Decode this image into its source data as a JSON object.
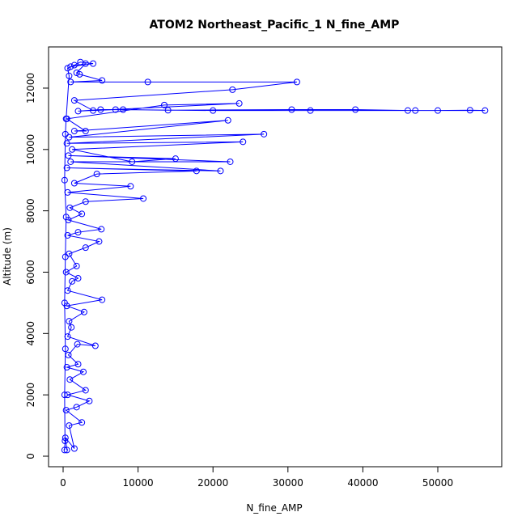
{
  "chart_data": {
    "type": "line",
    "title": "ATOM2 Northeast_Pacific_1 N_fine_AMP",
    "x_label": "N_fine_AMP",
    "y_label": "Altitude (m)",
    "color": "#0000ff",
    "markers": true,
    "x": [
      500,
      300,
      1500,
      800,
      2500,
      400,
      1800,
      3500,
      600,
      3000,
      900,
      2700,
      500,
      2000,
      700,
      1900,
      4300,
      600,
      1100,
      800,
      2800,
      500,
      5200,
      600,
      1200,
      2000,
      400,
      1800,
      800,
      3000,
      4800,
      600,
      2000,
      5100,
      700,
      2500,
      900,
      3000,
      10700,
      600,
      9000,
      1500,
      4500,
      17800,
      500,
      21000,
      1000,
      22300,
      700,
      15000,
      9200,
      1200,
      24000,
      500,
      26800,
      800,
      22000,
      1500,
      3000,
      500,
      13500,
      23500,
      2000,
      5000,
      8000,
      14000,
      30500,
      39000,
      46000,
      50000,
      54300,
      56300,
      47000,
      33000,
      20000,
      7000,
      4000,
      1500,
      22600,
      31200,
      11300,
      1000,
      5200,
      2200,
      1800,
      3000,
      1000,
      4000,
      2300,
      1500,
      600,
      800,
      400,
      300,
      200,
      400,
      300,
      200,
      300,
      200,
      250,
      200
    ],
    "values": [
      200,
      600,
      250,
      1000,
      1100,
      1500,
      1600,
      1800,
      2000,
      2150,
      2500,
      2750,
      2900,
      3000,
      3300,
      3650,
      3600,
      3900,
      4200,
      4400,
      4700,
      4900,
      5100,
      5400,
      5700,
      5800,
      6000,
      6200,
      6600,
      6800,
      7000,
      7200,
      7300,
      7400,
      7700,
      7900,
      8100,
      8300,
      8400,
      8600,
      8800,
      8900,
      9200,
      9300,
      9400,
      9300,
      9600,
      9600,
      9800,
      9700,
      9600,
      10000,
      10250,
      10200,
      10500,
      10400,
      10950,
      10600,
      10600,
      11000,
      11450,
      11500,
      11250,
      11300,
      11300,
      11280,
      11300,
      11300,
      11270,
      11270,
      11280,
      11270,
      11270,
      11270,
      11270,
      11300,
      11270,
      11600,
      11950,
      12200,
      12200,
      12200,
      12250,
      12450,
      12500,
      12800,
      12700,
      12800,
      12850,
      12750,
      12650,
      12400,
      11000,
      10500,
      9000,
      7800,
      6500,
      5000,
      3500,
      2000,
      500,
      200
    ],
    "xlim": [
      -1944,
      58530
    ],
    "ylim": [
      -343,
      13344
    ],
    "xticks": [
      0,
      10000,
      20000,
      30000,
      40000,
      50000
    ],
    "yticks": [
      0,
      2000,
      4000,
      6000,
      8000,
      10000,
      12000
    ]
  }
}
